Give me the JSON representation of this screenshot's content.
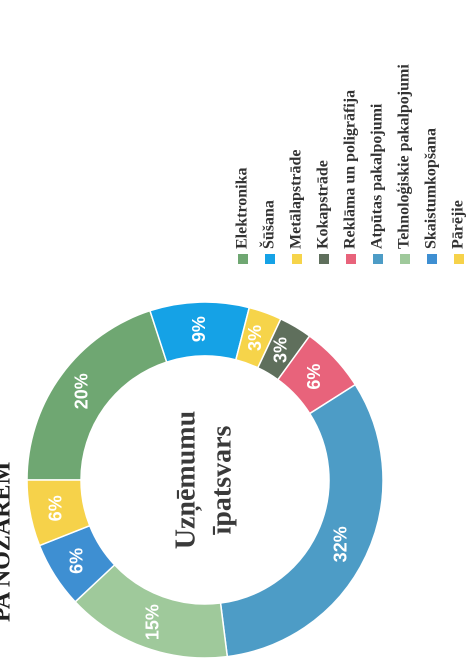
{
  "chart_data": {
    "type": "donut",
    "title": "PA NOZARĒM",
    "center_label": [
      "Uzņēmumu",
      "īpatsvars"
    ],
    "categories": [
      "Elektronika",
      "Šūšana",
      "Metālapstrāde",
      "Kokapstrāde",
      "Reklāma un poligrāfija",
      "Atpūtas pakalpojumi",
      "Tehnoloģiskie pakalpojumi",
      "Skaistumkopšana",
      "Pārējie"
    ],
    "values": [
      20,
      9,
      3,
      3,
      6,
      32,
      15,
      6,
      6
    ],
    "value_labels": [
      "20%",
      "9%",
      "3%",
      "3%",
      "6%",
      "32%",
      "15%",
      "6%",
      "6%"
    ],
    "colors": [
      "#6fa772",
      "#15a2e6",
      "#f6d44a",
      "#5f6f5c",
      "#e8637b",
      "#4d9cc6",
      "#9fc99b",
      "#3e8fd2",
      "#f6d24a"
    ]
  }
}
